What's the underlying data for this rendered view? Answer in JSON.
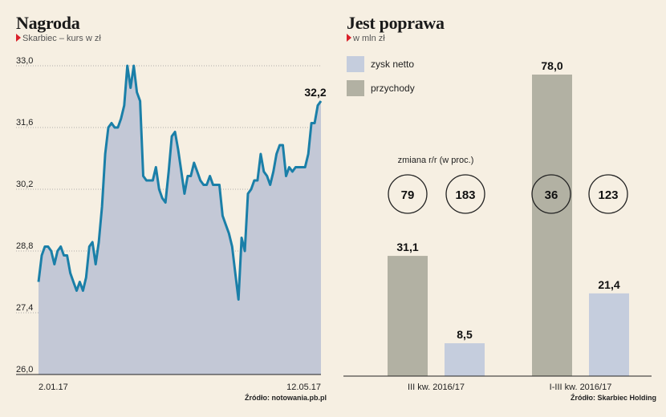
{
  "left": {
    "title": "Nagroda",
    "subtitle": "Skarbiec – kurs w zł",
    "source": "Źródło: notowania.pb.pl"
  },
  "right": {
    "title": "Jest poprawa",
    "subtitle": "w mln zł",
    "source": "Źródło: Skarbiec Holding",
    "change_label": "zmiana r/r (w proc.)"
  },
  "colors": {
    "line": "#1a7fa8",
    "area": "#c3c8d6",
    "zysk": "#c5cddd",
    "przychody": "#b2b1a3",
    "accent": "#d9202a",
    "background": "#f6efe2"
  },
  "chart_data": [
    {
      "type": "area",
      "x_start_label": "2.01.17",
      "x_end_label": "12.05.17",
      "yticks": [
        "33,0",
        "31,6",
        "30,2",
        "28,8",
        "27,4",
        "26,0"
      ],
      "ylim": [
        26.0,
        33.0
      ],
      "grid": true,
      "last_value_label": "32,2",
      "values": [
        28.1,
        28.7,
        28.9,
        28.9,
        28.8,
        28.5,
        28.8,
        28.9,
        28.7,
        28.7,
        28.3,
        28.1,
        27.9,
        28.1,
        27.9,
        28.2,
        28.9,
        29.0,
        28.5,
        29.0,
        29.8,
        31.0,
        31.6,
        31.7,
        31.6,
        31.6,
        31.8,
        32.1,
        33.0,
        32.5,
        33.0,
        32.4,
        32.2,
        30.5,
        30.4,
        30.4,
        30.4,
        30.7,
        30.2,
        30.0,
        29.9,
        30.6,
        31.4,
        31.5,
        31.1,
        30.6,
        30.1,
        30.5,
        30.5,
        30.8,
        30.6,
        30.4,
        30.3,
        30.3,
        30.5,
        30.3,
        30.3,
        30.3,
        29.6,
        29.4,
        29.2,
        28.9,
        28.3,
        27.7,
        29.1,
        28.8,
        30.1,
        30.2,
        30.4,
        30.4,
        31.0,
        30.6,
        30.5,
        30.3,
        30.6,
        31.0,
        31.2,
        31.2,
        30.5,
        30.7,
        30.6,
        30.7,
        30.7,
        30.7,
        30.7,
        31.0,
        31.7,
        31.7,
        32.1,
        32.2
      ]
    },
    {
      "type": "bar",
      "categories": [
        "III kw. 2016/17",
        "I-III kw. 2016/17"
      ],
      "legend": [
        "zysk netto",
        "przychody"
      ],
      "ylim": [
        0,
        78.0
      ],
      "series": [
        {
          "name": "przychody",
          "values": [
            31.1,
            78.0
          ],
          "labels": [
            "31,1",
            "78,0"
          ]
        },
        {
          "name": "zysk netto",
          "values": [
            8.5,
            21.4
          ],
          "labels": [
            "8,5",
            "21,4"
          ]
        }
      ],
      "change_rr": [
        "79",
        "183",
        "36",
        "123"
      ]
    }
  ]
}
